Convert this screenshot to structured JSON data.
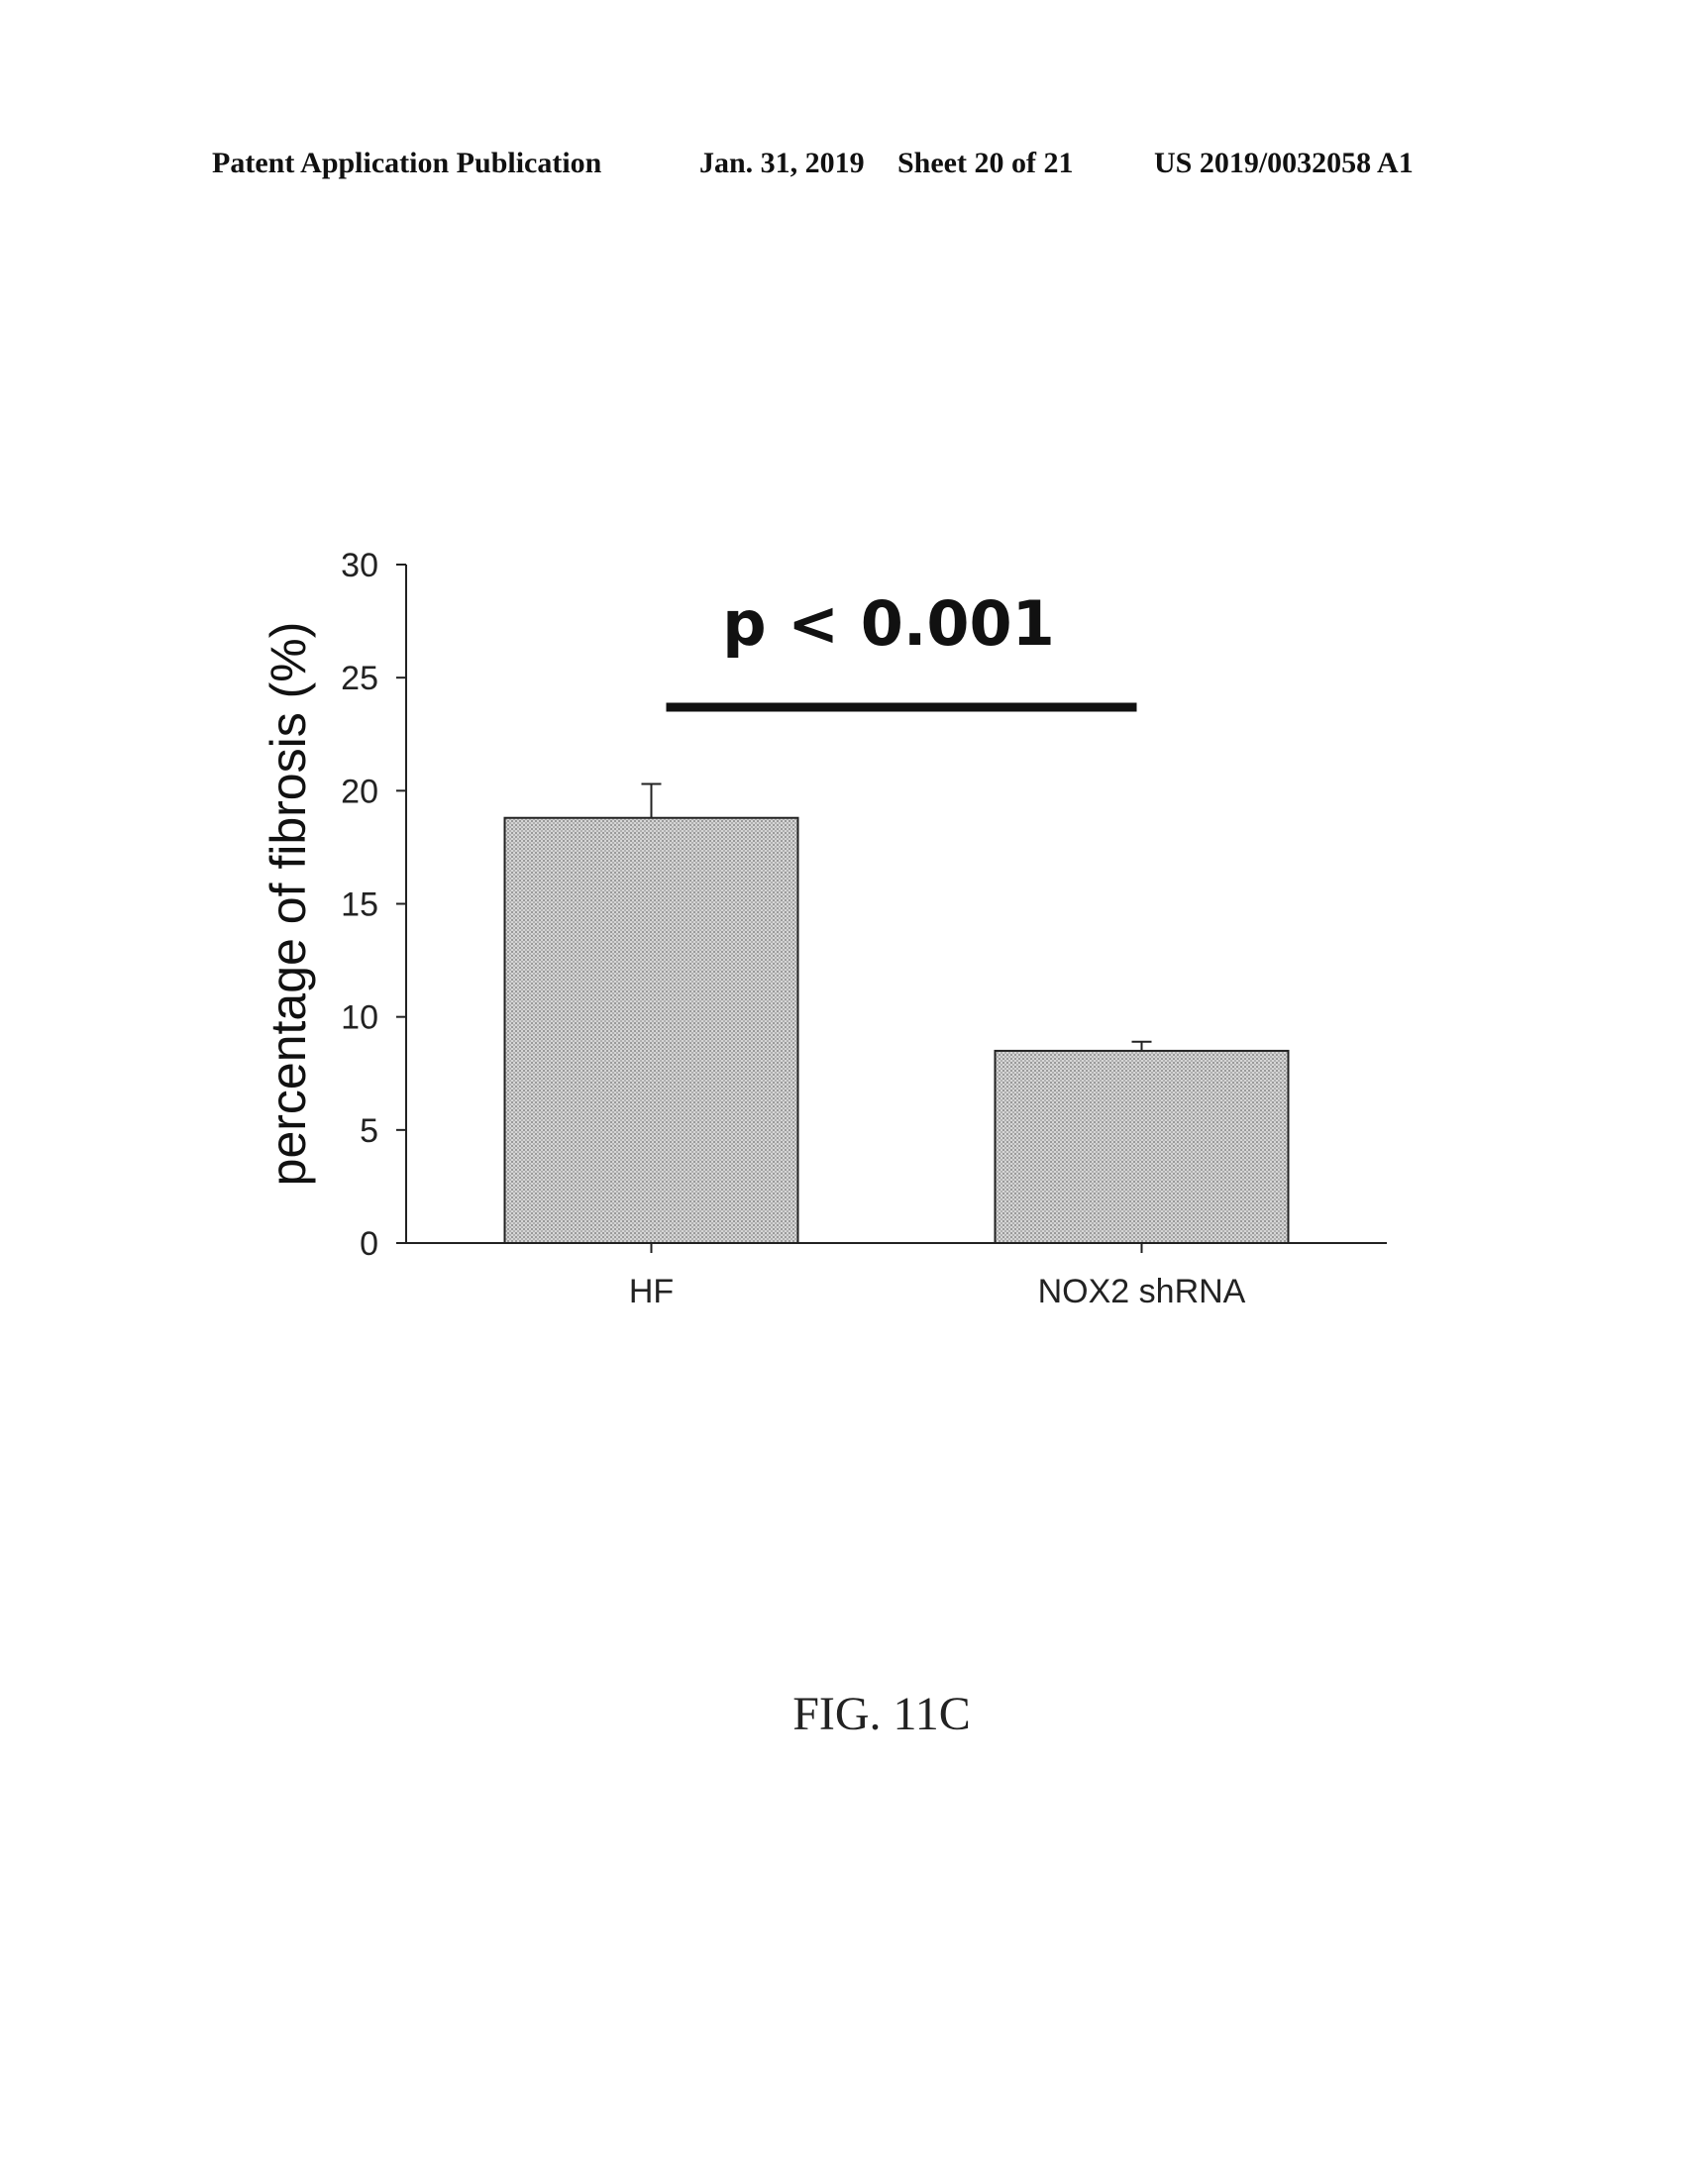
{
  "header": {
    "publication": "Patent Application Publication",
    "date": "Jan. 31, 2019",
    "sheet": "Sheet 20 of 21",
    "number": "US 2019/0032058 A1"
  },
  "figure_caption": "FIG. 11C",
  "chart_data": {
    "type": "bar",
    "categories": [
      "HF",
      "NOX2 shRNA"
    ],
    "values": [
      18.8,
      8.5
    ],
    "error_bars": [
      1.5,
      0.4
    ],
    "ylabel": "percentage of fibrosis (%)",
    "xlabel": "",
    "ylim": [
      0,
      30
    ],
    "yticks": [
      0,
      5,
      10,
      15,
      20,
      25,
      30
    ],
    "annotation": {
      "text": "p < 0.001",
      "between": [
        "HF",
        "NOX2 shRNA"
      ]
    },
    "bar_fill": "#c4c4c4",
    "grid": false,
    "legend": "none"
  }
}
